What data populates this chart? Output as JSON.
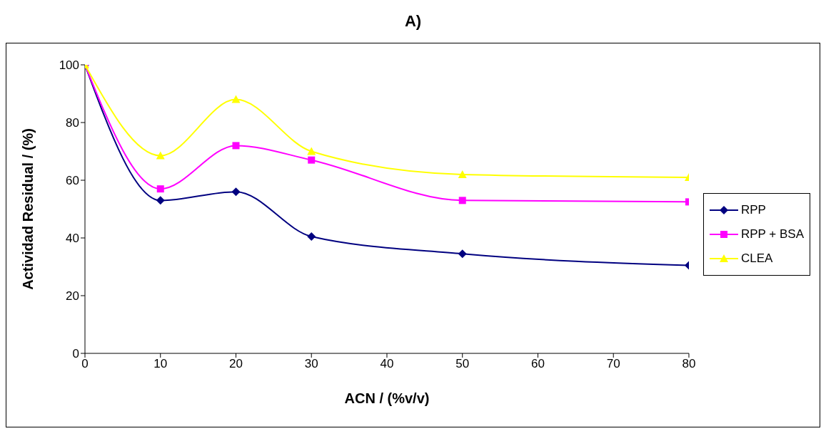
{
  "chart_data": {
    "type": "line",
    "title": "A)",
    "xlabel": "ACN / (%v/v)",
    "ylabel": "Actividad Residual / (%)",
    "x": [
      0,
      10,
      20,
      30,
      50,
      80
    ],
    "series": [
      {
        "name": "RPP",
        "color": "#000080",
        "marker": "diamond",
        "values": [
          100,
          53,
          56,
          40.5,
          34.5,
          30.5
        ]
      },
      {
        "name": "RPP + BSA",
        "color": "#ff00ff",
        "marker": "square",
        "values": [
          100,
          57,
          72,
          67,
          53,
          52.5
        ]
      },
      {
        "name": "CLEA",
        "color": "#ffff00",
        "marker": "triangle",
        "values": [
          100,
          68.5,
          88,
          70,
          62,
          61
        ]
      }
    ],
    "xlim": [
      0,
      80
    ],
    "xticks": [
      0,
      10,
      20,
      30,
      40,
      50,
      60,
      70,
      80
    ],
    "ylim": [
      0,
      100
    ],
    "yticks": [
      0,
      20,
      40,
      60,
      80,
      100
    ],
    "grid": false,
    "legend": "right",
    "line_style": "solid"
  }
}
